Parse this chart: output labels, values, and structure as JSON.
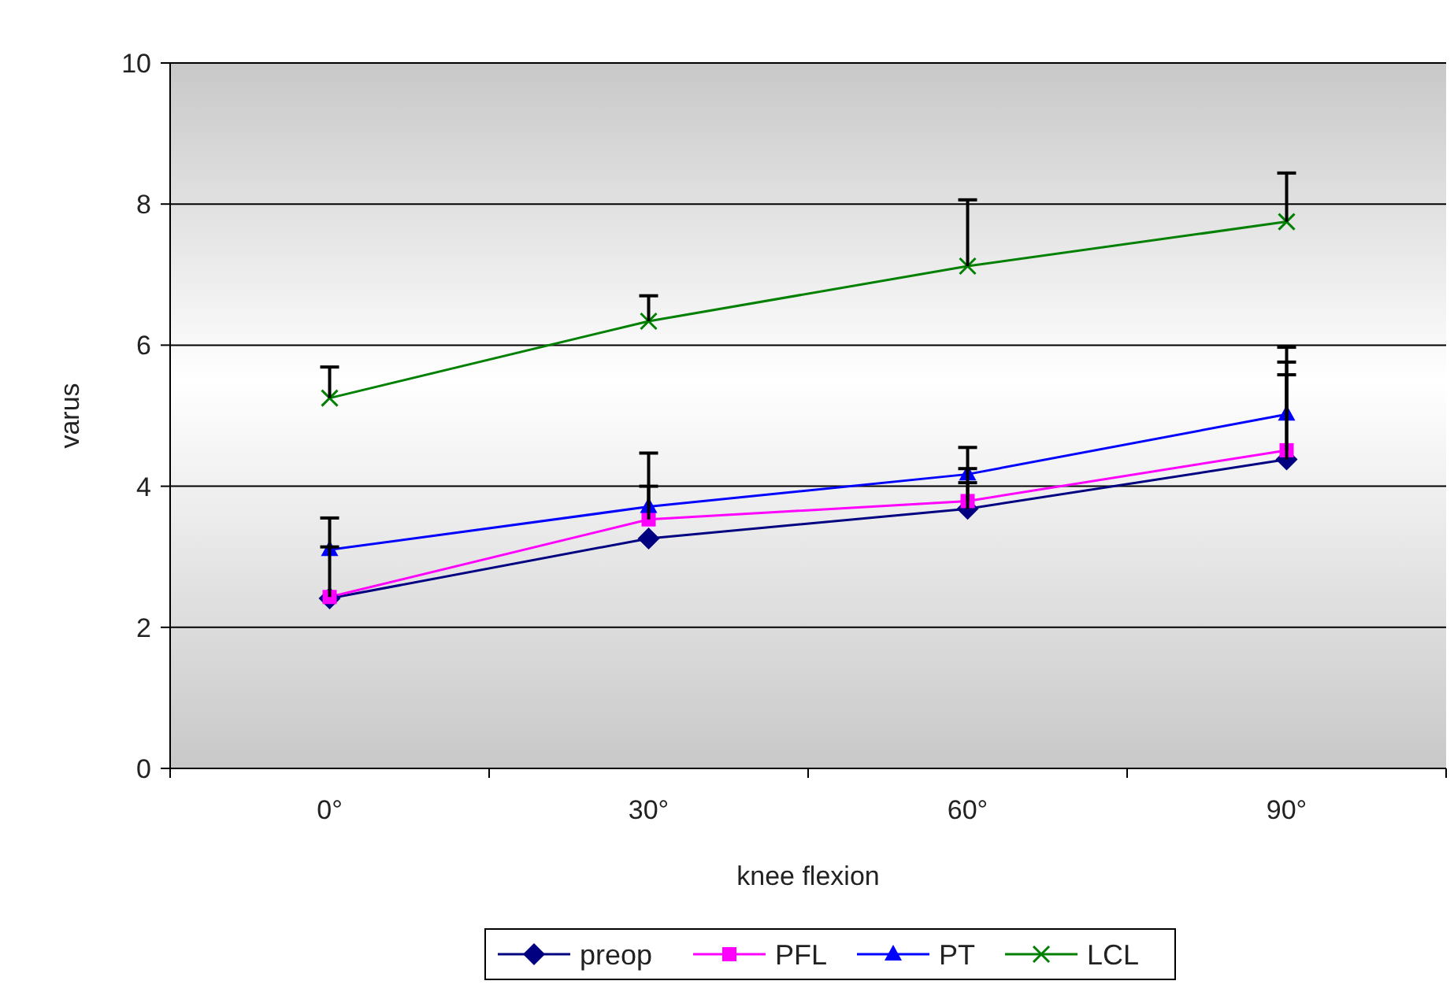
{
  "chart_data": {
    "type": "line",
    "xlabel": "knee flexion",
    "ylabel": "varus",
    "categories": [
      "0°",
      "30°",
      "60°",
      "90°"
    ],
    "ylim": [
      0,
      10
    ],
    "yticks": [
      0,
      2,
      4,
      6,
      8,
      10
    ],
    "grid": "y",
    "legend": "bottom",
    "series": [
      {
        "name": "preop",
        "color": "#000080",
        "marker": "diamond",
        "values": [
          2.41,
          3.26,
          3.68,
          4.38
        ],
        "errors": [
          null,
          null,
          [
            3.68,
            4.05
          ],
          [
            4.38,
            5.58
          ]
        ]
      },
      {
        "name": "PFL",
        "color": "#ff00ff",
        "marker": "square",
        "values": [
          2.43,
          3.53,
          3.79,
          4.51
        ],
        "errors": [
          [
            2.43,
            3.14
          ],
          [
            3.53,
            4.0
          ],
          [
            3.79,
            4.25
          ],
          [
            4.51,
            5.76
          ]
        ]
      },
      {
        "name": "PT",
        "color": "#0000ff",
        "marker": "triangle",
        "values": [
          3.1,
          3.71,
          4.17,
          5.02
        ],
        "errors": [
          [
            3.1,
            3.55
          ],
          [
            3.71,
            4.47
          ],
          [
            4.17,
            4.55
          ],
          [
            5.02,
            5.97
          ]
        ]
      },
      {
        "name": "LCL",
        "color": "#008000",
        "marker": "cross",
        "values": [
          5.25,
          6.34,
          7.12,
          7.75
        ],
        "errors": [
          [
            5.25,
            5.69
          ],
          [
            6.34,
            6.7
          ],
          [
            7.12,
            8.06
          ],
          [
            7.75,
            8.44
          ]
        ]
      }
    ]
  }
}
